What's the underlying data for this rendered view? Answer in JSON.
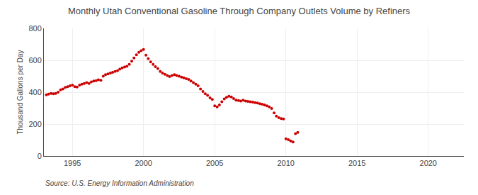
{
  "chart_data": {
    "type": "scatter",
    "title": "Monthly Utah Conventional Gasoline Through Company Outlets Volume by Refiners",
    "ylabel": "Thousand Gallons per Day",
    "annotations": [
      "Source: U.S. Energy Information Administration"
    ],
    "color": "#cc0000",
    "xlim": [
      1993.0,
      2022.5
    ],
    "xticks": [
      1995,
      2000,
      2005,
      2010,
      2015,
      2020
    ],
    "ylim": [
      0,
      800
    ],
    "yticks": [
      0,
      200,
      400,
      600,
      800
    ],
    "grid": true,
    "x": [
      1993.17,
      1993.33,
      1993.5,
      1993.67,
      1993.83,
      1994.0,
      1994.17,
      1994.33,
      1994.5,
      1994.67,
      1994.83,
      1995.0,
      1995.17,
      1995.33,
      1995.5,
      1995.67,
      1995.83,
      1996.0,
      1996.17,
      1996.33,
      1996.5,
      1996.67,
      1996.83,
      1997.0,
      1997.17,
      1997.33,
      1997.5,
      1997.67,
      1997.83,
      1998.0,
      1998.17,
      1998.33,
      1998.5,
      1998.67,
      1998.83,
      1999.0,
      1999.17,
      1999.33,
      1999.5,
      1999.67,
      1999.83,
      2000.0,
      2000.17,
      2000.33,
      2000.5,
      2000.67,
      2000.83,
      2001.0,
      2001.17,
      2001.33,
      2001.5,
      2001.67,
      2001.83,
      2002.0,
      2002.17,
      2002.33,
      2002.5,
      2002.67,
      2002.83,
      2003.0,
      2003.17,
      2003.33,
      2003.5,
      2003.67,
      2003.83,
      2004.0,
      2004.17,
      2004.33,
      2004.5,
      2004.67,
      2004.83,
      2005.0,
      2005.17,
      2005.33,
      2005.5,
      2005.67,
      2005.83,
      2006.0,
      2006.17,
      2006.33,
      2006.5,
      2006.67,
      2006.83,
      2007.0,
      2007.17,
      2007.33,
      2007.5,
      2007.67,
      2007.83,
      2008.0,
      2008.17,
      2008.33,
      2008.5,
      2008.67,
      2008.83,
      2009.0,
      2009.17,
      2009.33,
      2009.5,
      2009.67,
      2009.83,
      2010.0,
      2010.17,
      2010.33,
      2010.5,
      2010.67,
      2010.83
    ],
    "values": [
      383,
      388,
      392,
      390,
      392,
      400,
      415,
      420,
      430,
      435,
      440,
      445,
      435,
      432,
      445,
      450,
      455,
      460,
      455,
      465,
      470,
      472,
      478,
      475,
      500,
      510,
      515,
      520,
      525,
      530,
      535,
      545,
      552,
      558,
      562,
      575,
      595,
      615,
      635,
      650,
      660,
      668,
      632,
      610,
      590,
      575,
      560,
      548,
      530,
      520,
      512,
      505,
      498,
      505,
      510,
      505,
      500,
      495,
      490,
      485,
      480,
      470,
      460,
      450,
      440,
      420,
      405,
      390,
      380,
      365,
      355,
      315,
      308,
      320,
      340,
      358,
      368,
      375,
      370,
      360,
      350,
      348,
      345,
      350,
      345,
      342,
      340,
      338,
      335,
      332,
      328,
      325,
      320,
      315,
      308,
      298,
      270,
      250,
      240,
      235,
      232,
      108,
      102,
      95,
      88,
      140,
      148
    ]
  }
}
